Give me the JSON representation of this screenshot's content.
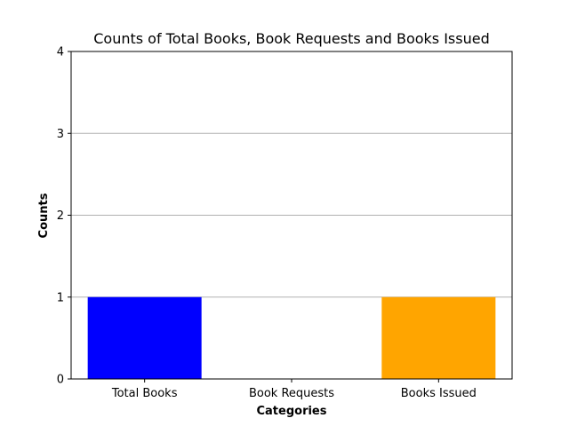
{
  "chart_data": {
    "type": "bar",
    "title": "Counts of Total Books, Book Requests and Books Issued",
    "xlabel": "Categories",
    "ylabel": "Counts",
    "categories": [
      "Total Books",
      "Book Requests",
      "Books Issued"
    ],
    "values": [
      1,
      0,
      1
    ],
    "colors": [
      "#0000ff",
      "#0000ff",
      "#ffa500"
    ],
    "ylim": [
      0,
      4
    ],
    "yticks": [
      0,
      1,
      2,
      3,
      4
    ],
    "grid": "y",
    "legend": "none"
  }
}
